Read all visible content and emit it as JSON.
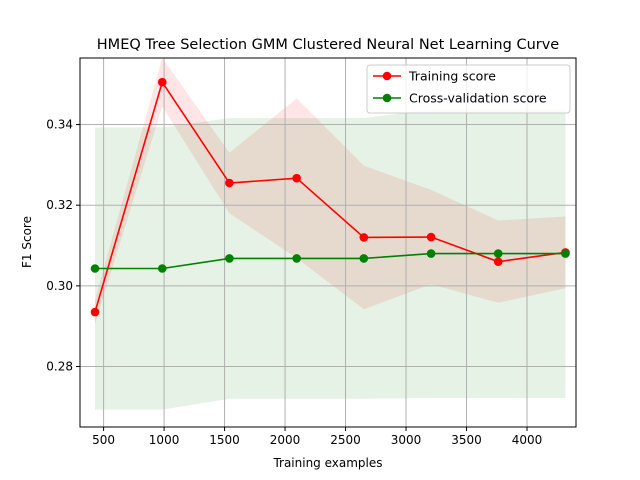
{
  "chart_data": {
    "type": "line",
    "title": "HMEQ Tree Selection GMM Clustered Neural Net Learning Curve",
    "xlabel": "Training examples",
    "ylabel": "F1 Score",
    "xlim": [
      305,
      4405
    ],
    "ylim": [
      0.265,
      0.3565
    ],
    "xticks": [
      500,
      1000,
      1500,
      2000,
      2500,
      3000,
      3500,
      4000
    ],
    "yticks": [
      0.28,
      0.3,
      0.32,
      0.34
    ],
    "ytick_labels": [
      "0.28",
      "0.30",
      "0.32",
      "0.34"
    ],
    "grid": true,
    "legend_position": "upper right",
    "x": [
      429,
      985,
      1540,
      2096,
      2651,
      3207,
      3762,
      4318
    ],
    "series": [
      {
        "name": "Training score",
        "color": "#ff0000",
        "values": [
          0.2935,
          0.3505,
          0.3255,
          0.3267,
          0.312,
          0.3121,
          0.306,
          0.3083
        ],
        "band_upper": [
          0.2965,
          0.3565,
          0.333,
          0.3465,
          0.3298,
          0.3238,
          0.3162,
          0.3172
        ],
        "band_lower": [
          0.2905,
          0.3445,
          0.318,
          0.3069,
          0.2942,
          0.3004,
          0.2958,
          0.2994
        ],
        "band_color": "#ff0000"
      },
      {
        "name": "Cross-validation score",
        "color": "#008000",
        "values": [
          0.3043,
          0.3043,
          0.3068,
          0.3068,
          0.3068,
          0.308,
          0.308,
          0.308
        ],
        "band_upper": [
          0.3393,
          0.3393,
          0.3416,
          0.3416,
          0.3416,
          0.3438,
          0.3438,
          0.3438
        ],
        "band_lower": [
          0.2693,
          0.2693,
          0.272,
          0.272,
          0.272,
          0.2722,
          0.2722,
          0.2722
        ],
        "band_color": "#008000"
      }
    ]
  }
}
